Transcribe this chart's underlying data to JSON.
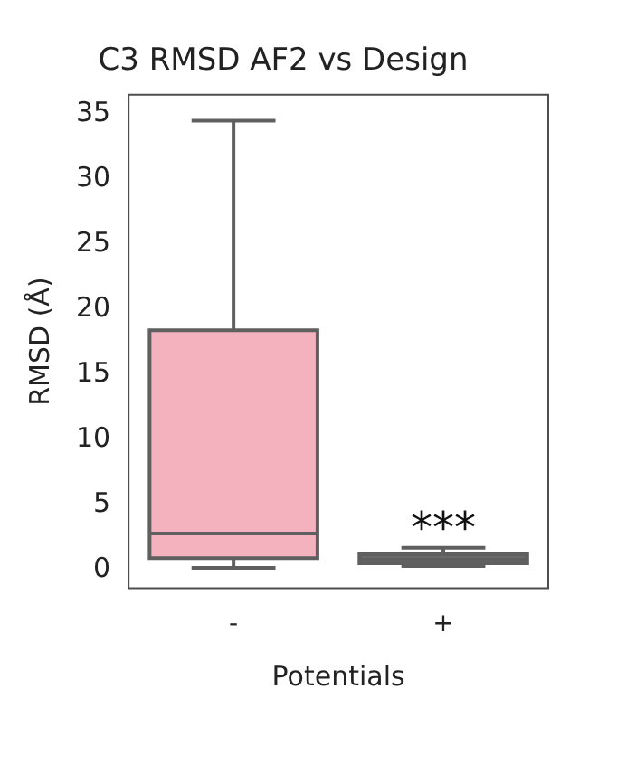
{
  "chart_data": {
    "type": "box",
    "title": "C3 RMSD AF2 vs Design",
    "xlabel": "Potentials",
    "ylabel": "RMSD (Å)",
    "categories": [
      "-",
      "+"
    ],
    "boxes": [
      {
        "low": 0.15,
        "q1": 0.9,
        "median": 2.8,
        "q3": 18.4,
        "high": 34.5
      },
      {
        "low": 0.3,
        "q1": 0.5,
        "median": 0.8,
        "q3": 1.2,
        "high": 1.7
      }
    ],
    "colors": [
      "#f4b2bf",
      "#6a6a6a"
    ],
    "ylim": [
      -1.4,
      36.5
    ],
    "yticks": [
      0,
      5,
      10,
      15,
      20,
      25,
      30,
      35
    ],
    "grid": false,
    "legend": false,
    "annotations": [
      "***"
    ]
  }
}
